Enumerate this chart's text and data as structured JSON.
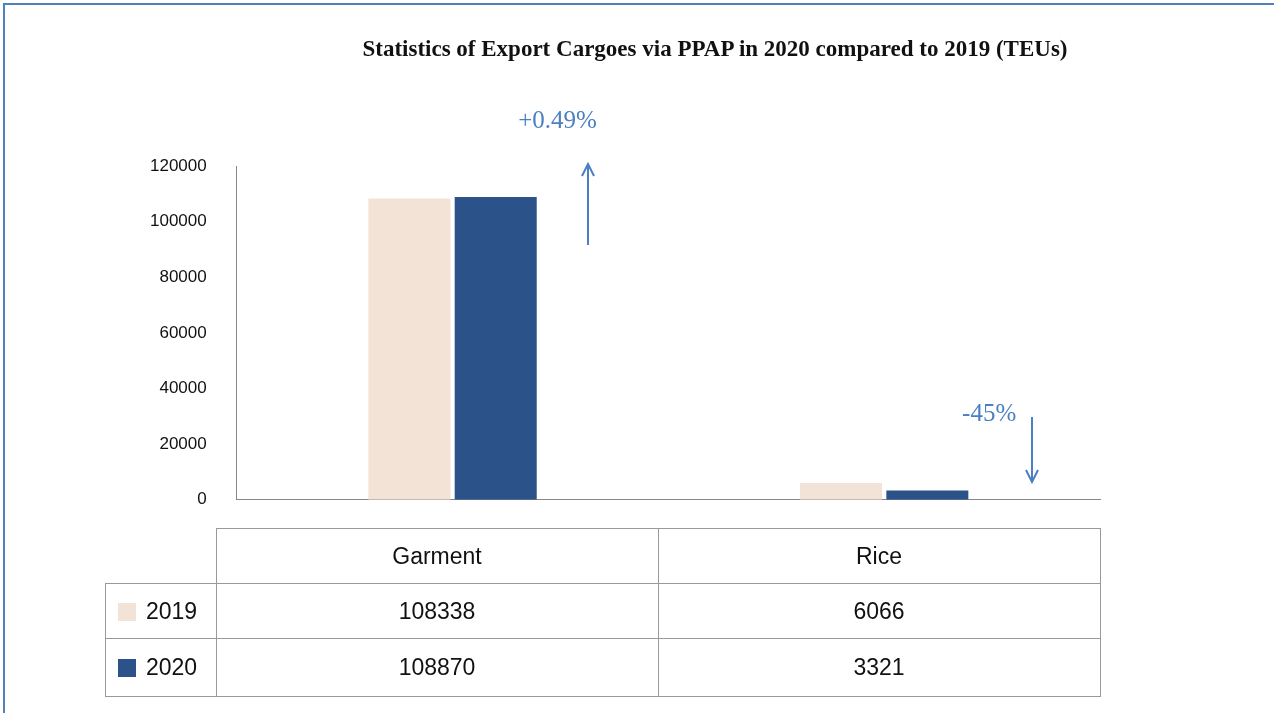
{
  "chart_data": {
    "type": "bar",
    "title": "Statistics of Export Cargoes via PPAP in 2020 compared to 2019 (TEUs)",
    "categories": [
      "Garment",
      "Rice"
    ],
    "series": [
      {
        "name": "2019",
        "color": "#f3e3d6",
        "values": [
          108338,
          6066
        ]
      },
      {
        "name": "2020",
        "color": "#2b5289",
        "values": [
          108870,
          3321
        ]
      }
    ],
    "ylim": [
      0,
      120000
    ],
    "yticks": [
      0,
      20000,
      40000,
      60000,
      80000,
      100000,
      120000
    ],
    "grid": false,
    "legend": "bottom",
    "data_labels": true,
    "annotations": [
      "+0.49%",
      "-45%"
    ]
  }
}
